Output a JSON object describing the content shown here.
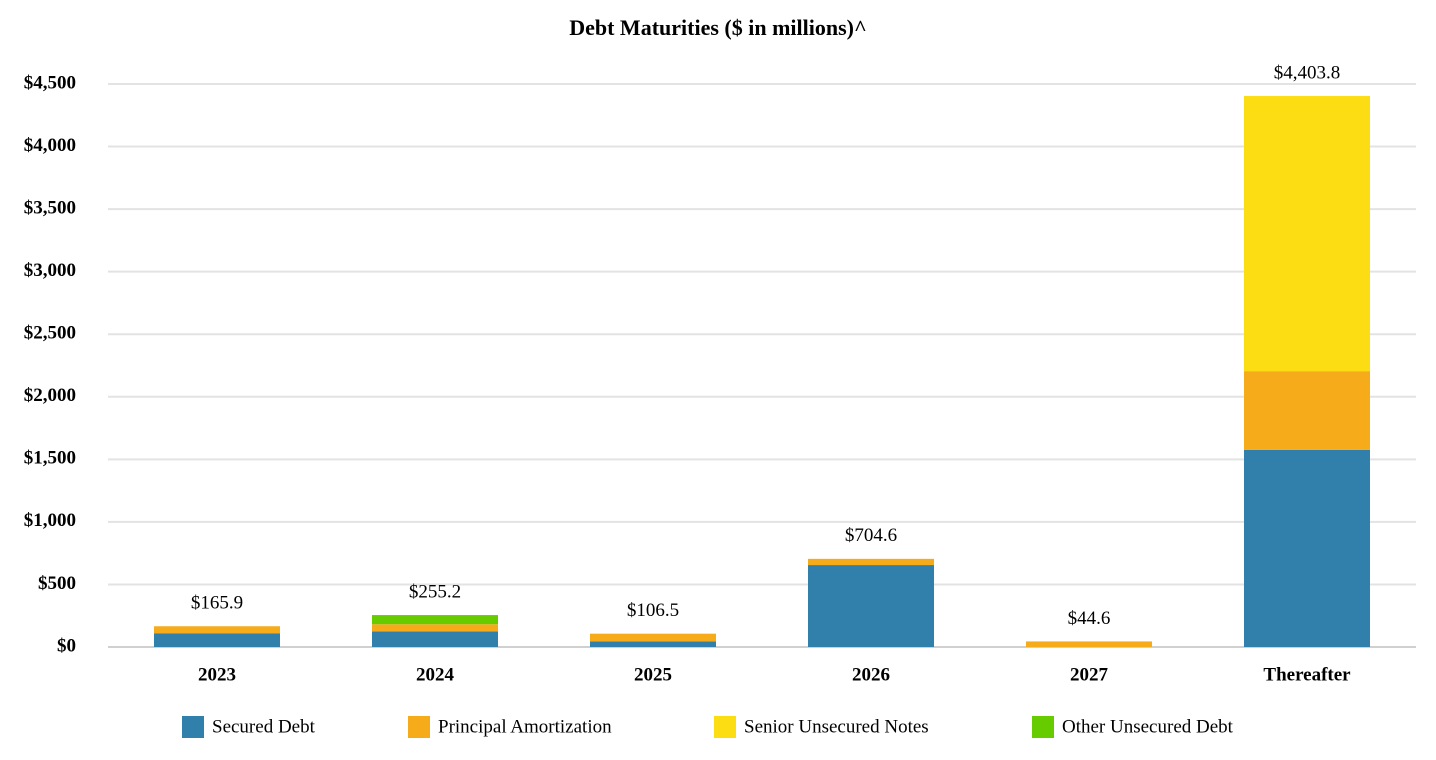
{
  "chart_data": {
    "type": "stacked_bar",
    "title": "Debt Maturities ($ in millions)^",
    "categories": [
      "2023",
      "2024",
      "2025",
      "2026",
      "2027",
      "Thereafter"
    ],
    "series": [
      {
        "name": "Secured Debt",
        "color": "#317fab",
        "values": [
          110,
          125,
          45,
          655,
          0,
          1575
        ]
      },
      {
        "name": "Principal Amortization",
        "color": "#f6ab1b",
        "values": [
          55.9,
          57,
          61.5,
          49.6,
          44.6,
          630
        ]
      },
      {
        "name": "Senior Unsecured Notes",
        "color": "#fcdc12",
        "values": [
          0,
          0,
          0,
          0,
          0,
          2198.8
        ]
      },
      {
        "name": "Other Unsecured Debt",
        "color": "#66cc00",
        "values": [
          0,
          73.2,
          0,
          0,
          0,
          0
        ]
      }
    ],
    "totals": {
      "values": [
        165.9,
        255.2,
        106.5,
        704.6,
        44.6,
        4403.8
      ],
      "value_labels": [
        "$165.9",
        "$255.2",
        "$106.5",
        "$704.6",
        "$44.6",
        "$4,403.8"
      ]
    },
    "ylim": [
      0,
      4500
    ],
    "yticks": [
      {
        "value": 0,
        "label": "$0"
      },
      {
        "value": 500,
        "label": "$500"
      },
      {
        "value": 1000,
        "label": "$1,000"
      },
      {
        "value": 1500,
        "label": "$1,500"
      },
      {
        "value": 2000,
        "label": "$2,000"
      },
      {
        "value": 2500,
        "label": "$2,500"
      },
      {
        "value": 3000,
        "label": "$3,000"
      },
      {
        "value": 3500,
        "label": "$3,500"
      },
      {
        "value": 4000,
        "label": "$4,000"
      },
      {
        "value": 4500,
        "label": "$4,500"
      }
    ],
    "grid": true,
    "legend": "bottom"
  }
}
